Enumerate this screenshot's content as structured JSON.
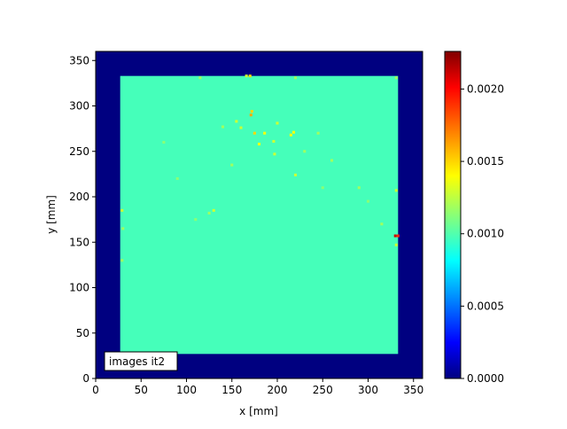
{
  "chart_data": {
    "type": "heatmap",
    "xlabel": "x [mm]",
    "ylabel": "y [mm]",
    "xlim": [
      0,
      360
    ],
    "ylim": [
      0,
      360
    ],
    "xticks": [
      0,
      50,
      100,
      150,
      200,
      250,
      300,
      350
    ],
    "yticks": [
      0,
      50,
      100,
      150,
      200,
      250,
      300,
      350
    ],
    "colormap": "jet",
    "background_value": 0.0,
    "region": {
      "x": [
        27,
        333
      ],
      "y": [
        27,
        333
      ],
      "value": 0.001
    },
    "cell_size_mm": 3,
    "hotspots": [
      [
        330,
        157,
        0.0021
      ],
      [
        333,
        157,
        0.0019
      ],
      [
        171,
        290,
        0.0016
      ],
      [
        172,
        294,
        0.0015
      ],
      [
        186,
        270,
        0.0014
      ],
      [
        175,
        270,
        0.0015
      ],
      [
        180,
        258,
        0.0014
      ],
      [
        215,
        268,
        0.0014
      ],
      [
        218,
        271,
        0.0014
      ],
      [
        196,
        261,
        0.0013
      ],
      [
        197,
        247,
        0.0013
      ],
      [
        220,
        224,
        0.0013
      ],
      [
        155,
        283,
        0.0013
      ],
      [
        160,
        276,
        0.0013
      ],
      [
        200,
        281,
        0.0013
      ],
      [
        140,
        277,
        0.0012
      ],
      [
        245,
        270,
        0.0012
      ],
      [
        230,
        250,
        0.0012
      ],
      [
        130,
        185,
        0.0013
      ],
      [
        125,
        182,
        0.0012
      ],
      [
        150,
        235,
        0.0012
      ],
      [
        260,
        240,
        0.0012
      ],
      [
        290,
        210,
        0.0012
      ],
      [
        315,
        170,
        0.0012
      ],
      [
        331,
        207,
        0.0013
      ],
      [
        331,
        147,
        0.0013
      ],
      [
        29,
        130,
        0.0012
      ],
      [
        29,
        185,
        0.0013
      ],
      [
        30,
        165,
        0.0012
      ],
      [
        170,
        333,
        0.0015
      ],
      [
        166,
        333,
        0.0013
      ],
      [
        115,
        331,
        0.0012
      ],
      [
        220,
        331,
        0.0012
      ],
      [
        331,
        331,
        0.0012
      ],
      [
        75,
        260,
        0.00115
      ],
      [
        90,
        220,
        0.00115
      ],
      [
        110,
        175,
        0.00115
      ],
      [
        300,
        195,
        0.00115
      ],
      [
        250,
        210,
        0.00115
      ]
    ],
    "colorbar": {
      "range": [
        0.0,
        0.00226
      ],
      "ticks": [
        0.0,
        0.0005,
        0.001,
        0.0015,
        0.002
      ],
      "tick_labels": [
        "0.0000",
        "0.0005",
        "0.0010",
        "0.0015",
        "0.0020"
      ]
    },
    "annotation": "images it2"
  }
}
